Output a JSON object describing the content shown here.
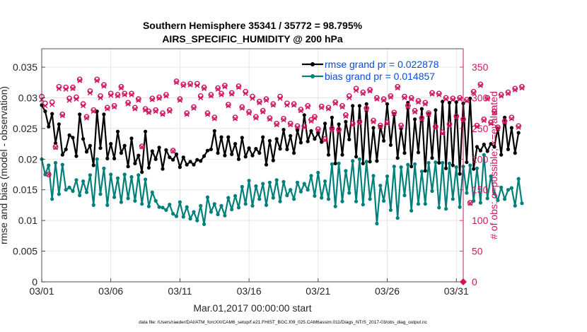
{
  "chart_data": {
    "type": "line",
    "title_line1": "Southern Hemisphere 35341 / 35772 = 98.795%",
    "title_line2": "AIRS_SPECIFIC_HUMIDITY @ 200 hPa",
    "xlabel": "Mar.01,2017 00:00:00 start",
    "ylabel_left": "rmse and bias (model - observation)",
    "ylabel_right": "# of obs: o=possible; ×=evaluated",
    "footnote": "data file: /Users/raeder/DAI/ATM_forcXX/CAM6_setup/f.e21.FHIST_BGC.f09_025.CAM6assim.011/Diags_NTrS_2017-03/obs_diag_output.nc",
    "x_tick_labels": [
      "03/01",
      "03/06",
      "03/11",
      "03/16",
      "03/21",
      "03/26",
      "03/31"
    ],
    "x_tick_days": [
      1,
      6,
      11,
      16,
      21,
      26,
      31
    ],
    "xlim_days": [
      1,
      31.5
    ],
    "ylim_left": [
      0,
      0.038
    ],
    "yticks_left": [
      0,
      0.005,
      0.01,
      0.015,
      0.02,
      0.025,
      0.03,
      0.035
    ],
    "yticks_left_labels": [
      "0",
      "0.005",
      "0.01",
      "0.015",
      "0.02",
      "0.025",
      "0.03",
      "0.035"
    ],
    "ylim_right": [
      0,
      380
    ],
    "yticks_right": [
      0,
      50,
      100,
      150,
      200,
      250,
      300,
      350
    ],
    "yticks_right_labels": [
      "0",
      "50",
      "100",
      "150",
      "200",
      "250",
      "300",
      "350"
    ],
    "x_step_days": 0.25,
    "legend": {
      "position": "top-right",
      "entries": [
        "rmse grand pr = 0.022878",
        "bias grand pr = 0.014857"
      ]
    },
    "series": [
      {
        "name": "rmse",
        "color": "#000000",
        "values": [
          0.0288,
          0.0278,
          0.0253,
          0.0274,
          0.0226,
          0.0257,
          0.0207,
          0.0216,
          0.0239,
          0.0235,
          0.0205,
          0.0273,
          0.0233,
          0.0212,
          0.0222,
          0.019,
          0.0278,
          0.0218,
          0.0273,
          0.0201,
          0.0225,
          0.0201,
          0.0245,
          0.021,
          0.0222,
          0.0188,
          0.0234,
          0.0193,
          0.0206,
          0.0179,
          0.0245,
          0.0186,
          0.0213,
          0.02,
          0.0219,
          0.0184,
          0.0215,
          0.0203,
          0.0199,
          0.0208,
          0.0187,
          0.0203,
          0.0191,
          0.0196,
          0.0191,
          0.0199,
          0.0197,
          0.0205,
          0.0214,
          0.0216,
          0.0246,
          0.021,
          0.0236,
          0.0206,
          0.0236,
          0.0208,
          0.0225,
          0.02,
          0.0235,
          0.0204,
          0.0218,
          0.0206,
          0.0217,
          0.021,
          0.0236,
          0.0191,
          0.023,
          0.0198,
          0.0233,
          0.0217,
          0.0248,
          0.0216,
          0.0238,
          0.021,
          0.0247,
          0.0227,
          0.0272,
          0.0229,
          0.0246,
          0.0233,
          0.0242,
          0.0228,
          0.0258,
          0.0207,
          0.0268,
          0.0193,
          0.0257,
          0.0207,
          0.0261,
          0.0232,
          0.0287,
          0.0204,
          0.0287,
          0.0193,
          0.029,
          0.0196,
          0.0251,
          0.0197,
          0.0253,
          0.023,
          0.029,
          0.0223,
          0.0274,
          0.0202,
          0.025,
          0.021,
          0.0292,
          0.0188,
          0.0265,
          0.0211,
          0.0282,
          0.0181,
          0.0274,
          0.0202,
          0.028,
          0.0194,
          0.0294,
          0.0185,
          0.0292,
          0.019,
          0.0293,
          0.0176,
          0.0291,
          0.0195,
          0.0299,
          0.0184,
          0.022,
          0.0214,
          0.0224,
          0.0213,
          0.0225,
          0.022,
          0.025,
          0.0207,
          0.0268,
          0.0216,
          0.0251,
          0.021,
          0.0243
        ]
      },
      {
        "name": "bias",
        "color": "#00807a",
        "values": [
          0.02,
          0.0175,
          0.019,
          0.0135,
          0.0194,
          0.0143,
          0.0191,
          0.015,
          0.0154,
          0.0148,
          0.0166,
          0.0141,
          0.0164,
          0.0146,
          0.0174,
          0.0125,
          0.02,
          0.0143,
          0.0185,
          0.0125,
          0.0175,
          0.0138,
          0.0169,
          0.013,
          0.0175,
          0.0136,
          0.0171,
          0.0132,
          0.0174,
          0.0127,
          0.0167,
          0.0123,
          0.0146,
          0.0132,
          0.0122,
          0.0121,
          0.0117,
          0.0126,
          0.0111,
          0.0107,
          0.013,
          0.0106,
          0.0122,
          0.0103,
          0.0114,
          0.01,
          0.0124,
          0.0094,
          0.0138,
          0.0114,
          0.0127,
          0.011,
          0.0124,
          0.0108,
          0.0137,
          0.0118,
          0.014,
          0.0121,
          0.0155,
          0.0127,
          0.0165,
          0.0124,
          0.0156,
          0.0135,
          0.016,
          0.0125,
          0.0162,
          0.0137,
          0.0166,
          0.0131,
          0.0163,
          0.0141,
          0.015,
          0.0135,
          0.0162,
          0.0147,
          0.016,
          0.015,
          0.0173,
          0.014,
          0.0178,
          0.0137,
          0.0164,
          0.0135,
          0.0192,
          0.0123,
          0.0193,
          0.0131,
          0.0181,
          0.0145,
          0.0197,
          0.0131,
          0.02,
          0.0126,
          0.0196,
          0.0135,
          0.0173,
          0.0095,
          0.0157,
          0.0132,
          0.0172,
          0.0117,
          0.0188,
          0.0104,
          0.0187,
          0.0141,
          0.0191,
          0.0116,
          0.0192,
          0.0127,
          0.018,
          0.0127,
          0.0194,
          0.0148,
          0.0195,
          0.0121,
          0.0194,
          0.0119,
          0.0193,
          0.0135,
          0.0187,
          0.0122,
          0.0188,
          0.0145,
          0.019,
          0.0132,
          0.0185,
          0.0129,
          0.0207,
          0.0136,
          0.0172,
          0.0144,
          0.0133,
          0.0154,
          0.0135,
          0.015,
          0.0153,
          0.0124,
          0.0168,
          0.0128
        ]
      },
      {
        "name": "obs possible",
        "color": "#d01560",
        "marker": "o",
        "values": [
          302,
          291,
          175,
          293,
          220,
          318,
          273,
          317,
          299,
          317,
          301,
          330,
          290,
          269,
          311,
          280,
          330,
          303,
          321,
          284,
          307,
          287,
          305,
          318,
          307,
          292,
          307,
          284,
          298,
          221,
          282,
          278,
          299,
          280,
          301,
          275,
          305,
          280,
          214,
          327,
          298,
          322,
          275,
          323,
          285,
          323,
          303,
          317,
          275,
          305,
          268,
          316,
          307,
          320,
          289,
          308,
          268,
          319,
          285,
          310,
          277,
          302,
          269,
          294,
          279,
          298,
          267,
          290,
          258,
          302,
          266,
          291,
          258,
          290,
          254,
          281,
          254,
          287,
          264,
          269,
          249,
          286,
          233,
          284,
          250,
          293,
          248,
          287,
          272,
          303,
          258,
          315,
          261,
          309,
          283,
          313,
          263,
          300,
          255,
          298,
          260,
          303,
          276,
          318,
          255,
          302,
          287,
          300,
          279,
          295,
          267,
          292,
          275,
          308,
          253,
          307,
          244,
          300,
          257,
          299,
          270,
          300,
          265,
          297,
          129,
          310,
          255,
          322,
          265,
          300,
          260,
          278,
          252,
          305,
          262,
          309,
          268,
          315,
          254,
          318
        ]
      },
      {
        "name": "obs evaluated",
        "color": "#d01560",
        "marker": "x",
        "values": [
          297,
          287,
          175,
          289,
          219,
          315,
          271,
          314,
          296,
          315,
          298,
          328,
          287,
          267,
          308,
          278,
          328,
          300,
          319,
          282,
          304,
          285,
          303,
          316,
          305,
          290,
          305,
          282,
          296,
          220,
          280,
          276,
          297,
          278,
          299,
          273,
          303,
          278,
          213,
          325,
          296,
          320,
          273,
          321,
          283,
          320,
          300,
          315,
          273,
          303,
          266,
          314,
          305,
          318,
          287,
          306,
          266,
          317,
          283,
          307,
          275,
          299,
          267,
          292,
          277,
          296,
          265,
          288,
          256,
          299,
          264,
          288,
          256,
          288,
          252,
          279,
          252,
          285,
          262,
          267,
          247,
          284,
          231,
          282,
          248,
          291,
          246,
          285,
          270,
          300,
          256,
          312,
          259,
          307,
          281,
          311,
          261,
          298,
          253,
          296,
          258,
          301,
          274,
          316,
          253,
          300,
          285,
          298,
          277,
          293,
          265,
          290,
          273,
          306,
          251,
          305,
          242,
          298,
          255,
          297,
          268,
          298,
          263,
          295,
          128,
          308,
          253,
          320,
          263,
          298,
          258,
          276,
          250,
          303,
          260,
          307,
          266,
          313,
          252,
          316
        ]
      }
    ]
  }
}
